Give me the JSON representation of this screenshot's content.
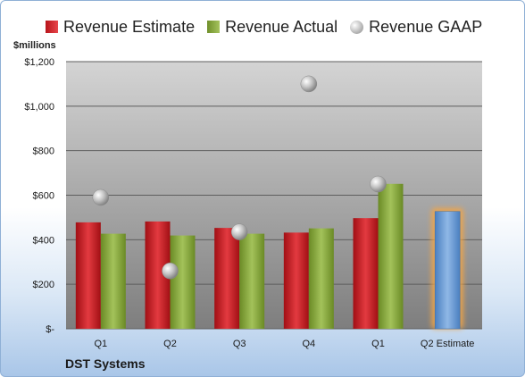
{
  "legend": {
    "estimate_label": "Revenue Estimate",
    "actual_label": "Revenue Actual",
    "gaap_label": "Revenue GAAP"
  },
  "axis": {
    "y_unit_label": "$millions",
    "y_ticks": [
      "$-",
      "$200",
      "$400",
      "$600",
      "$800",
      "$1,000",
      "$1,200"
    ]
  },
  "company": "DST Systems",
  "colors": {
    "estimate": "#c8141a",
    "actual": "#8aab3e",
    "gaap": "#b0b0b0",
    "q2_estimate_bar": "#6e9fd6",
    "q2_estimate_glow": "#f4a545"
  },
  "chart_data": {
    "type": "bar",
    "categories": [
      "Q1",
      "Q2",
      "Q3",
      "Q4",
      "Q1",
      "Q2 Estimate"
    ],
    "ylim": [
      0,
      1200
    ],
    "yticks": [
      0,
      200,
      400,
      600,
      800,
      1000,
      1200
    ],
    "ylabel": "$millions",
    "series": [
      {
        "name": "Revenue Estimate",
        "type": "bar",
        "values": [
          478,
          482,
          453,
          432,
          497,
          null
        ]
      },
      {
        "name": "Revenue Actual",
        "type": "bar",
        "values": [
          427,
          419,
          427,
          451,
          651,
          527
        ]
      },
      {
        "name": "Revenue GAAP",
        "type": "scatter",
        "values": [
          590,
          260,
          435,
          1100,
          650,
          null
        ]
      }
    ],
    "highlight_category": "Q2 Estimate",
    "grid": true,
    "legend_position": "top"
  }
}
